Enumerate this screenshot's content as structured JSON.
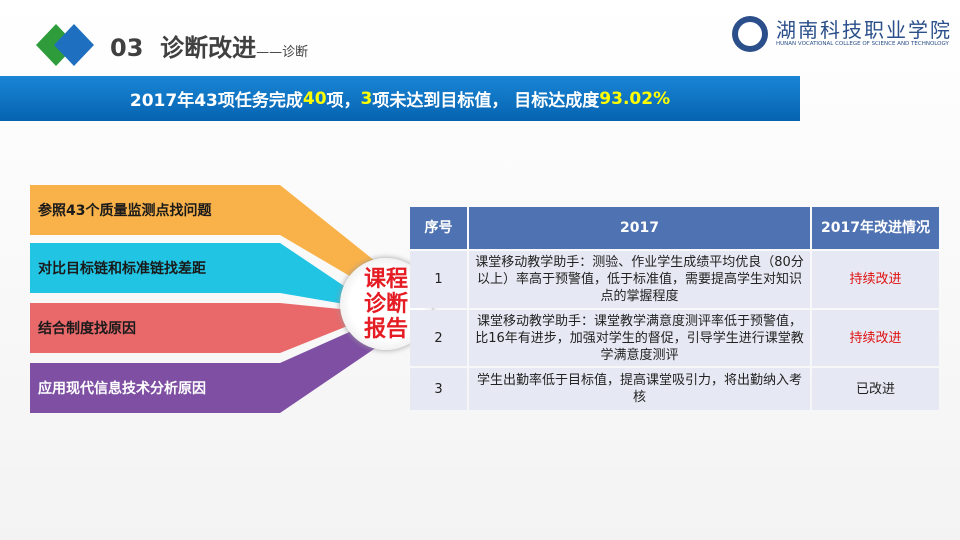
{
  "header": {
    "number": "03",
    "title": "诊断改进",
    "subtitle": "——诊断"
  },
  "logo": {
    "name": "湖南科技职业学院",
    "english": "HUNAN VOCATIONAL COLLEGE OF SCIENCE AND TECHNOLOGY"
  },
  "banner": {
    "parts": [
      "2017年43项任务完成",
      "40",
      "项，",
      "3",
      "项未达到目标值， 目标达成度",
      "93.02%"
    ]
  },
  "steps": [
    "参照43个质量监测点找问题",
    "对比目标链和标准链找差距",
    "结合制度找原因",
    "应用现代信息技术分析原因"
  ],
  "center_label": [
    "课程",
    "诊断",
    "报告"
  ],
  "table": {
    "headers": [
      "序号",
      "2017",
      "2017年改进情况"
    ],
    "rows": [
      [
        "1",
        "课堂移动教学助手：测验、作业学生成绩平均优良（80分以上）率高于预警值，低于标准值，需要提高学生对知识点的掌握程度",
        "持续改进"
      ],
      [
        "2",
        "课堂移动教学助手：课堂教学满意度测评率低于预警值，比16年有进步，加强对学生的督促，引导学生进行课堂教学满意度测评",
        "持续改进"
      ],
      [
        "3",
        "学生出勤率低于目标值，提高课堂吸引力，将出勤纳入考核",
        "已改进"
      ]
    ]
  }
}
